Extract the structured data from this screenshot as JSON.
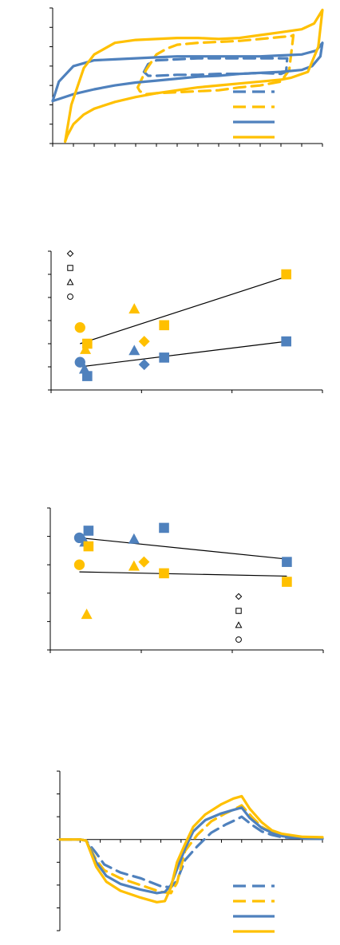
{
  "colors": {
    "blue": "#4f81bd",
    "yellow": "#ffc000",
    "dark_blue": "#3d6aa6",
    "axis": "#000000"
  },
  "chart_data": [
    {
      "type": "line",
      "title": "",
      "xlabel": "",
      "ylabel": "",
      "xlim": [
        0,
        13
      ],
      "ylim": [
        0,
        7
      ],
      "grid": false,
      "x_ticks": 13,
      "y_ticks": 7,
      "series": [
        {
          "style": "dashed",
          "color": "blue",
          "x": [
            4.4,
            4.6,
            5,
            6,
            7,
            8,
            9,
            10,
            11,
            11.3,
            11.25,
            11,
            10,
            9,
            8,
            7,
            6,
            5,
            4.6,
            4.4
          ],
          "y": [
            3.7,
            4.1,
            4.3,
            4.35,
            4.4,
            4.4,
            4.4,
            4.4,
            4.4,
            4.4,
            3.7,
            3.6,
            3.65,
            3.6,
            3.6,
            3.55,
            3.55,
            3.5,
            3.5,
            3.7
          ]
        },
        {
          "style": "dashed",
          "color": "yellow",
          "x": [
            4.1,
            4.5,
            5,
            5.5,
            6,
            7,
            8,
            9,
            10,
            11,
            11.5,
            11.6,
            11.4,
            11,
            10,
            9,
            8,
            7,
            6,
            5,
            4.5,
            4.2,
            4.1
          ],
          "y": [
            2.9,
            3.8,
            4.6,
            4.9,
            5.1,
            5.2,
            5.25,
            5.3,
            5.4,
            5.5,
            5.55,
            5.6,
            3.8,
            3.2,
            3.0,
            2.9,
            2.75,
            2.7,
            2.65,
            2.6,
            2.55,
            2.7,
            2.9
          ]
        },
        {
          "style": "solid",
          "color": "blue",
          "x": [
            0,
            0.3,
            1,
            2,
            3,
            4,
            5,
            6,
            7,
            8,
            9,
            10,
            11,
            12,
            12.7,
            13,
            12.9,
            12.5,
            12,
            11,
            10,
            9,
            8,
            7,
            6,
            5,
            4,
            3,
            2,
            1,
            0.3,
            0
          ],
          "y": [
            2.2,
            3.2,
            4.0,
            4.3,
            4.35,
            4.4,
            4.45,
            4.5,
            4.5,
            4.5,
            4.5,
            4.5,
            4.55,
            4.6,
            4.8,
            5.2,
            4.5,
            4.0,
            3.8,
            3.7,
            3.65,
            3.6,
            3.5,
            3.45,
            3.35,
            3.25,
            3.15,
            3.0,
            2.8,
            2.55,
            2.3,
            2.2
          ]
        },
        {
          "style": "solid",
          "color": "yellow",
          "x": [
            0.6,
            0.9,
            1.5,
            2,
            3,
            4,
            5,
            6,
            7,
            8,
            9,
            10,
            11,
            12,
            12.6,
            13,
            12.8,
            12.3,
            11.5,
            11,
            10,
            9,
            8,
            7,
            6,
            5,
            4,
            3,
            2,
            1.5,
            1,
            0.7,
            0.6
          ],
          "y": [
            0.1,
            2.0,
            3.9,
            4.6,
            5.2,
            5.35,
            5.4,
            5.45,
            5.45,
            5.4,
            5.45,
            5.6,
            5.75,
            5.9,
            6.2,
            6.9,
            5.0,
            3.7,
            3.4,
            3.3,
            3.2,
            3.1,
            3.0,
            2.9,
            2.75,
            2.6,
            2.4,
            2.15,
            1.8,
            1.5,
            1.0,
            0.4,
            0.1
          ]
        }
      ],
      "legend": [
        {
          "style": "dashed",
          "color": "blue"
        },
        {
          "style": "dashed",
          "color": "yellow"
        },
        {
          "style": "solid",
          "color": "blue"
        },
        {
          "style": "solid",
          "color": "yellow"
        }
      ]
    },
    {
      "type": "scatter",
      "title": "",
      "xlabel": "",
      "ylabel": "",
      "xlim": [
        0,
        3
      ],
      "ylim": [
        0,
        6
      ],
      "grid": false,
      "x_ticks": 3,
      "y_ticks": 6,
      "marker_legend": [
        "diamond",
        "square",
        "triangle",
        "circle"
      ],
      "points": [
        {
          "x": 0.32,
          "y": 1.2,
          "marker": "circle",
          "color": "blue"
        },
        {
          "x": 0.4,
          "y": 0.6,
          "marker": "square",
          "color": "blue"
        },
        {
          "x": 0.37,
          "y": 0.9,
          "marker": "triangle",
          "color": "blue"
        },
        {
          "x": 0.92,
          "y": 1.7,
          "marker": "triangle",
          "color": "blue"
        },
        {
          "x": 1.03,
          "y": 1.1,
          "marker": "diamond",
          "color": "blue"
        },
        {
          "x": 1.25,
          "y": 1.4,
          "marker": "square",
          "color": "blue"
        },
        {
          "x": 2.6,
          "y": 2.1,
          "marker": "square",
          "color": "blue"
        },
        {
          "x": 0.32,
          "y": 2.7,
          "marker": "circle",
          "color": "yellow"
        },
        {
          "x": 0.4,
          "y": 2.0,
          "marker": "square",
          "color": "yellow"
        },
        {
          "x": 0.38,
          "y": 1.75,
          "marker": "triangle",
          "color": "yellow"
        },
        {
          "x": 0.92,
          "y": 3.5,
          "marker": "triangle",
          "color": "yellow"
        },
        {
          "x": 1.03,
          "y": 2.1,
          "marker": "diamond",
          "color": "yellow"
        },
        {
          "x": 1.25,
          "y": 2.8,
          "marker": "square",
          "color": "yellow"
        },
        {
          "x": 2.6,
          "y": 5.0,
          "marker": "square",
          "color": "yellow"
        }
      ],
      "fits": [
        {
          "x": [
            0.32,
            2.6
          ],
          "y": [
            1.0,
            2.1
          ]
        },
        {
          "x": [
            0.32,
            2.6
          ],
          "y": [
            2.0,
            4.9
          ]
        }
      ]
    },
    {
      "type": "scatter",
      "title": "",
      "xlabel": "",
      "ylabel": "",
      "xlim": [
        0,
        3
      ],
      "ylim": [
        0,
        5
      ],
      "grid": false,
      "x_ticks": 3,
      "y_ticks": 5,
      "marker_legend": [
        "diamond",
        "square",
        "triangle",
        "circle"
      ],
      "points": [
        {
          "x": 0.32,
          "y": 3.95,
          "marker": "circle",
          "color": "blue"
        },
        {
          "x": 0.42,
          "y": 4.2,
          "marker": "square",
          "color": "blue"
        },
        {
          "x": 0.38,
          "y": 3.8,
          "marker": "triangle",
          "color": "blue"
        },
        {
          "x": 0.92,
          "y": 3.9,
          "marker": "triangle",
          "color": "blue"
        },
        {
          "x": 1.25,
          "y": 4.3,
          "marker": "square",
          "color": "blue"
        },
        {
          "x": 2.6,
          "y": 3.1,
          "marker": "square",
          "color": "blue"
        },
        {
          "x": 0.32,
          "y": 3.0,
          "marker": "circle",
          "color": "yellow"
        },
        {
          "x": 0.42,
          "y": 3.65,
          "marker": "square",
          "color": "yellow"
        },
        {
          "x": 0.4,
          "y": 1.25,
          "marker": "triangle",
          "color": "yellow"
        },
        {
          "x": 0.92,
          "y": 2.95,
          "marker": "triangle",
          "color": "yellow"
        },
        {
          "x": 1.03,
          "y": 3.1,
          "marker": "diamond",
          "color": "yellow"
        },
        {
          "x": 1.25,
          "y": 2.7,
          "marker": "square",
          "color": "yellow"
        },
        {
          "x": 2.6,
          "y": 2.4,
          "marker": "square",
          "color": "yellow"
        }
      ],
      "fits": [
        {
          "x": [
            0.32,
            2.6
          ],
          "y": [
            3.95,
            3.2
          ]
        },
        {
          "x": [
            0.32,
            2.6
          ],
          "y": [
            2.75,
            2.6
          ]
        }
      ]
    },
    {
      "type": "line",
      "title": "",
      "xlabel": "",
      "ylabel": "",
      "xlim": [
        0,
        13
      ],
      "ylim": [
        -4,
        3
      ],
      "grid": false,
      "x_ticks": 13,
      "y_ticks": 7,
      "series": [
        {
          "style": "dashed",
          "color": "blue",
          "x": [
            0,
            1,
            1.3,
            1.8,
            2.2,
            3,
            4,
            5,
            5.5,
            5.8,
            6.2,
            6.8,
            7.5,
            8.2,
            8.8,
            9,
            9.5,
            10,
            10.5,
            11,
            12,
            13
          ],
          "y": [
            0,
            0,
            -0.05,
            -0.6,
            -1.1,
            -1.45,
            -1.7,
            -2.05,
            -2.1,
            -1.8,
            -0.9,
            -0.3,
            0.3,
            0.65,
            0.9,
            1.0,
            0.65,
            0.35,
            0.2,
            0.1,
            0.05,
            0.05
          ]
        },
        {
          "style": "dashed",
          "color": "yellow",
          "x": [
            0,
            1,
            1.3,
            1.8,
            2.2,
            3,
            4,
            5,
            5.5,
            5.8,
            6.2,
            6.8,
            7.5,
            8.2,
            8.8,
            9,
            9.5,
            10,
            10.5,
            11,
            12,
            13
          ],
          "y": [
            0,
            0,
            -0.05,
            -0.9,
            -1.35,
            -1.7,
            -2.0,
            -2.3,
            -2.35,
            -1.9,
            -0.5,
            0.2,
            0.8,
            1.15,
            1.4,
            1.5,
            1.0,
            0.55,
            0.3,
            0.2,
            0.1,
            0.05
          ]
        },
        {
          "style": "solid",
          "color": "blue",
          "x": [
            0,
            1,
            1.3,
            1.8,
            2.3,
            3,
            4,
            4.8,
            5.2,
            5.5,
            5.8,
            6.2,
            6.6,
            7.2,
            8,
            8.6,
            9,
            9.4,
            10,
            10.5,
            11,
            12,
            13
          ],
          "y": [
            0,
            0,
            -0.05,
            -1.0,
            -1.6,
            -1.95,
            -2.2,
            -2.35,
            -2.3,
            -2.0,
            -1.3,
            -0.4,
            0.35,
            0.85,
            1.15,
            1.3,
            1.4,
            0.95,
            0.5,
            0.3,
            0.15,
            0.05,
            0.03
          ]
        },
        {
          "style": "solid",
          "color": "yellow",
          "x": [
            0,
            1,
            1.3,
            1.8,
            2.3,
            3,
            4,
            4.8,
            5.2,
            5.5,
            5.8,
            6.2,
            6.6,
            7.2,
            8,
            8.6,
            9,
            9.4,
            10,
            10.5,
            11,
            12,
            13
          ],
          "y": [
            0,
            0,
            -0.05,
            -1.2,
            -1.85,
            -2.25,
            -2.55,
            -2.75,
            -2.7,
            -2.1,
            -1.0,
            -0.2,
            0.55,
            1.1,
            1.55,
            1.8,
            1.9,
            1.35,
            0.75,
            0.4,
            0.25,
            0.12,
            0.1
          ]
        }
      ],
      "legend": [
        {
          "style": "dashed",
          "color": "blue"
        },
        {
          "style": "dashed",
          "color": "yellow"
        },
        {
          "style": "solid",
          "color": "blue"
        },
        {
          "style": "solid",
          "color": "yellow"
        }
      ]
    }
  ]
}
